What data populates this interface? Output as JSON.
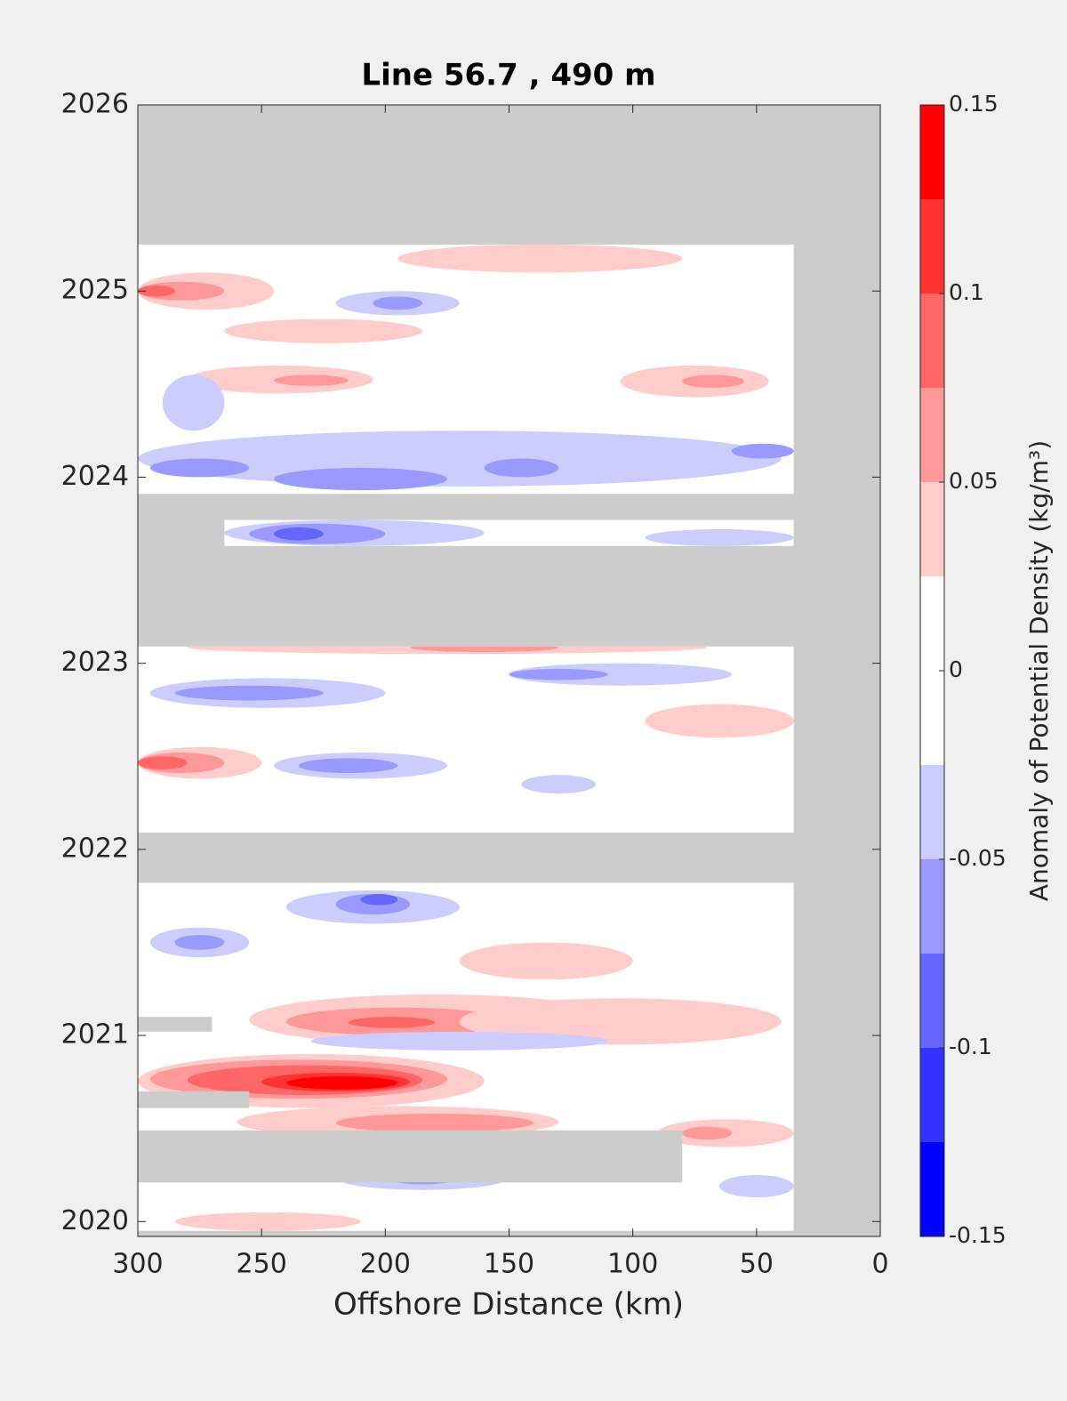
{
  "chart_data": {
    "type": "contour",
    "title": "Line 56.7 , 490 m",
    "x_label": "Offshore Distance (km)",
    "colorbar_label": "Anomaly of Potential Density (kg/m³)",
    "xlim": [
      300,
      0
    ],
    "xticks": [
      300,
      250,
      200,
      150,
      100,
      50,
      0
    ],
    "ylim": [
      2019.92,
      2026
    ],
    "yticks": [
      2020,
      2021,
      2022,
      2023,
      2024,
      2025,
      2026
    ],
    "levels": [
      -0.15,
      -0.125,
      -0.1,
      -0.075,
      -0.05,
      -0.025,
      0,
      0.025,
      0.05,
      0.075,
      0.1,
      0.125,
      0.15
    ],
    "colors": [
      "#0000ff",
      "#3333ff",
      "#6666ff",
      "#9999ff",
      "#ccccff",
      "#ffffff",
      "#ffffff",
      "#ffcccc",
      "#ff9999",
      "#ff6666",
      "#ff3333",
      "#ff0000"
    ],
    "cticks": [
      -0.15,
      -0.1,
      -0.05,
      0,
      0.05,
      0.1,
      0.15
    ],
    "no_data_color": "#cccccc",
    "data_regions": [
      {
        "x": [
          300,
          35
        ],
        "y": [
          2023.91,
          2025.25
        ]
      },
      {
        "x": [
          265,
          35
        ],
        "y": [
          2023.63,
          2023.77
        ]
      },
      {
        "x": [
          300,
          35
        ],
        "y": [
          2022.09,
          2023.09
        ]
      },
      {
        "x": [
          300,
          35
        ],
        "y": [
          2019.95,
          2021.82
        ]
      }
    ],
    "gaps": [
      {
        "x": [
          300,
          80
        ],
        "y": [
          2020.21,
          2020.49
        ]
      },
      {
        "x": [
          300,
          255
        ],
        "y": [
          2020.61,
          2020.7
        ]
      },
      {
        "x": [
          300,
          270
        ],
        "y": [
          2021.02,
          2021.1
        ]
      }
    ],
    "patches": [
      {
        "x": [
          300,
          160
        ],
        "y": [
          2020.61,
          2020.9
        ],
        "value": 0.03
      },
      {
        "x": [
          295,
          175
        ],
        "y": [
          2020.66,
          2020.87
        ],
        "value": 0.06
      },
      {
        "x": [
          280,
          185
        ],
        "y": [
          2020.68,
          2020.84
        ],
        "value": 0.09
      },
      {
        "x": [
          250,
          190
        ],
        "y": [
          2020.7,
          2020.8
        ],
        "value": 0.12
      },
      {
        "x": [
          240,
          195
        ],
        "y": [
          2020.71,
          2020.78
        ],
        "value": 0.14
      },
      {
        "x": [
          255,
          105
        ],
        "y": [
          2020.95,
          2021.22
        ],
        "value": 0.03
      },
      {
        "x": [
          240,
          150
        ],
        "y": [
          2021.0,
          2021.15
        ],
        "value": 0.06
      },
      {
        "x": [
          215,
          180
        ],
        "y": [
          2021.04,
          2021.1
        ],
        "value": 0.09
      },
      {
        "x": [
          170,
          40
        ],
        "y": [
          2020.95,
          2021.2
        ],
        "value": 0.03
      },
      {
        "x": [
          300,
          245
        ],
        "y": [
          2024.9,
          2025.1
        ],
        "value": 0.03
      },
      {
        "x": [
          300,
          265
        ],
        "y": [
          2024.95,
          2025.05
        ],
        "value": 0.06
      },
      {
        "x": [
          300,
          285
        ],
        "y": [
          2024.97,
          2025.03
        ],
        "value": 0.09
      },
      {
        "x": [
          195,
          80
        ],
        "y": [
          2025.1,
          2025.25
        ],
        "value": 0.03
      },
      {
        "x": [
          220,
          170
        ],
        "y": [
          2024.87,
          2025.0
        ],
        "value": -0.03
      },
      {
        "x": [
          205,
          185
        ],
        "y": [
          2024.9,
          2024.97
        ],
        "value": -0.06
      },
      {
        "x": [
          265,
          185
        ],
        "y": [
          2024.72,
          2024.85
        ],
        "value": 0.03
      },
      {
        "x": [
          280,
          205
        ],
        "y": [
          2024.45,
          2024.6
        ],
        "value": 0.03
      },
      {
        "x": [
          245,
          215
        ],
        "y": [
          2024.49,
          2024.55
        ],
        "value": 0.06
      },
      {
        "x": [
          105,
          45
        ],
        "y": [
          2024.43,
          2024.6
        ],
        "value": 0.03
      },
      {
        "x": [
          80,
          55
        ],
        "y": [
          2024.48,
          2024.55
        ],
        "value": 0.06
      },
      {
        "x": [
          300,
          40
        ],
        "y": [
          2023.95,
          2024.25
        ],
        "value": -0.03
      },
      {
        "x": [
          295,
          255
        ],
        "y": [
          2024.0,
          2024.1
        ],
        "value": -0.06
      },
      {
        "x": [
          245,
          175
        ],
        "y": [
          2023.93,
          2024.05
        ],
        "value": -0.06
      },
      {
        "x": [
          160,
          130
        ],
        "y": [
          2024.0,
          2024.1
        ],
        "value": -0.06
      },
      {
        "x": [
          60,
          35
        ],
        "y": [
          2024.1,
          2024.18
        ],
        "value": -0.06
      },
      {
        "x": [
          290,
          265
        ],
        "y": [
          2024.25,
          2024.55
        ],
        "value": -0.03
      },
      {
        "x": [
          265,
          160
        ],
        "y": [
          2023.63,
          2023.77
        ],
        "value": -0.03
      },
      {
        "x": [
          255,
          200
        ],
        "y": [
          2023.64,
          2023.75
        ],
        "value": -0.06
      },
      {
        "x": [
          245,
          225
        ],
        "y": [
          2023.66,
          2023.73
        ],
        "value": -0.09
      },
      {
        "x": [
          95,
          35
        ],
        "y": [
          2023.63,
          2023.72
        ],
        "value": -0.03
      },
      {
        "x": [
          280,
          70
        ],
        "y": [
          2023.05,
          2023.12
        ],
        "value": 0.03
      },
      {
        "x": [
          190,
          130
        ],
        "y": [
          2023.06,
          2023.11
        ],
        "value": 0.06
      },
      {
        "x": [
          295,
          200
        ],
        "y": [
          2022.76,
          2022.92
        ],
        "value": -0.03
      },
      {
        "x": [
          285,
          225
        ],
        "y": [
          2022.8,
          2022.88
        ],
        "value": -0.06
      },
      {
        "x": [
          150,
          60
        ],
        "y": [
          2022.88,
          2023.0
        ],
        "value": -0.03
      },
      {
        "x": [
          150,
          110
        ],
        "y": [
          2022.91,
          2022.97
        ],
        "value": -0.06
      },
      {
        "x": [
          300,
          250
        ],
        "y": [
          2022.38,
          2022.55
        ],
        "value": 0.03
      },
      {
        "x": [
          300,
          265
        ],
        "y": [
          2022.41,
          2022.52
        ],
        "value": 0.06
      },
      {
        "x": [
          300,
          280
        ],
        "y": [
          2022.43,
          2022.5
        ],
        "value": 0.09
      },
      {
        "x": [
          245,
          175
        ],
        "y": [
          2022.38,
          2022.52
        ],
        "value": -0.03
      },
      {
        "x": [
          235,
          195
        ],
        "y": [
          2022.41,
          2022.49
        ],
        "value": -0.06
      },
      {
        "x": [
          145,
          115
        ],
        "y": [
          2022.3,
          2022.4
        ],
        "value": -0.03
      },
      {
        "x": [
          95,
          35
        ],
        "y": [
          2022.6,
          2022.78
        ],
        "value": 0.03
      },
      {
        "x": [
          240,
          170
        ],
        "y": [
          2021.6,
          2021.78
        ],
        "value": -0.03
      },
      {
        "x": [
          220,
          190
        ],
        "y": [
          2021.65,
          2021.76
        ],
        "value": -0.06
      },
      {
        "x": [
          210,
          195
        ],
        "y": [
          2021.7,
          2021.76
        ],
        "value": -0.09
      },
      {
        "x": [
          295,
          255
        ],
        "y": [
          2021.42,
          2021.58
        ],
        "value": -0.03
      },
      {
        "x": [
          285,
          265
        ],
        "y": [
          2021.46,
          2021.54
        ],
        "value": -0.06
      },
      {
        "x": [
          170,
          100
        ],
        "y": [
          2021.3,
          2021.5
        ],
        "value": 0.03
      },
      {
        "x": [
          230,
          110
        ],
        "y": [
          2020.92,
          2021.02
        ],
        "value": -0.03
      },
      {
        "x": [
          90,
          35
        ],
        "y": [
          2020.4,
          2020.55
        ],
        "value": 0.03
      },
      {
        "x": [
          80,
          60
        ],
        "y": [
          2020.44,
          2020.51
        ],
        "value": 0.06
      },
      {
        "x": [
          260,
          130
        ],
        "y": [
          2020.45,
          2020.62
        ],
        "value": 0.03
      },
      {
        "x": [
          220,
          140
        ],
        "y": [
          2020.48,
          2020.58
        ],
        "value": 0.06
      },
      {
        "x": [
          220,
          150
        ],
        "y": [
          2020.17,
          2020.3
        ],
        "value": -0.03
      },
      {
        "x": [
          200,
          170
        ],
        "y": [
          2020.2,
          2020.27
        ],
        "value": -0.06
      },
      {
        "x": [
          65,
          35
        ],
        "y": [
          2020.13,
          2020.25
        ],
        "value": -0.03
      },
      {
        "x": [
          285,
          210
        ],
        "y": [
          2019.95,
          2020.05
        ],
        "value": 0.03
      }
    ]
  }
}
